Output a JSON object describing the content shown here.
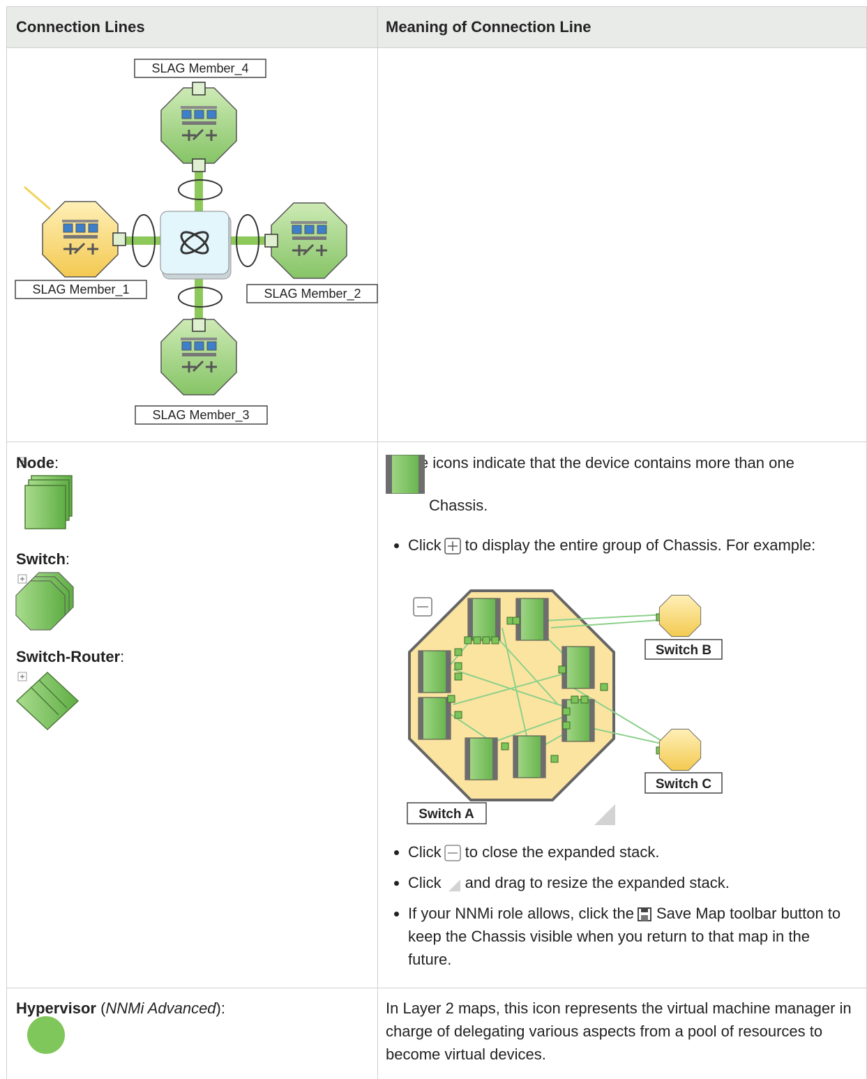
{
  "header": {
    "col1": "Connection Lines",
    "col2": "Meaning of Connection Line"
  },
  "rows": [
    {
      "diagram": {
        "labels": [
          "SLAG Member_4",
          "SLAG Member_1",
          "SLAG Member_2",
          "SLAG Member_3"
        ]
      }
    },
    {
      "icons": [
        {
          "label": "Node",
          "punct": ":"
        },
        {
          "label": "Switch",
          "punct": ":"
        },
        {
          "label": "Switch-Router",
          "punct": ":"
        }
      ],
      "intro": "These icons indicate that the device contains more than one",
      "intro_end": "Chassis.",
      "bullets": [
        {
          "before": "Click",
          "after": "to display the entire group of Chassis. For example:"
        },
        {
          "before": "Click",
          "after": "to close the expanded stack."
        },
        {
          "before": "Click",
          "after": "and drag to resize the expanded stack."
        },
        {
          "before": "If your NNMi role allows, click the",
          "after": "Save Map toolbar button to keep the Chassis visible when you return to that map in the future."
        }
      ],
      "example_labels": [
        "Switch A",
        "Switch B",
        "Switch C"
      ]
    },
    {
      "name": "Hypervisor",
      "open": "(",
      "edition": "NNMi Advanced",
      "close": "):",
      "description": "In Layer 2 maps, this icon represents the virtual machine manager in charge of delegating various aspects from a pool of resources to become virtual devices."
    }
  ]
}
